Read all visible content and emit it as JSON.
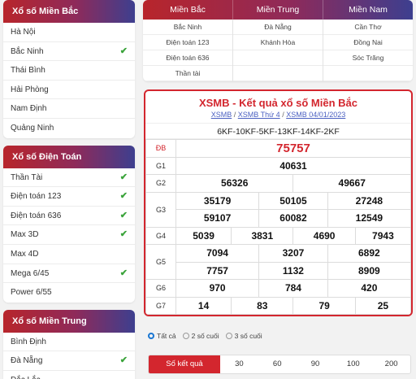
{
  "left": {
    "bac": {
      "title": "Xổ số Miền Bắc",
      "items": [
        {
          "label": "Hà Nội",
          "checked": false
        },
        {
          "label": "Bắc Ninh",
          "checked": true
        },
        {
          "label": "Thái Bình",
          "checked": false
        },
        {
          "label": "Hải Phòng",
          "checked": false
        },
        {
          "label": "Nam Định",
          "checked": false
        },
        {
          "label": "Quảng Ninh",
          "checked": false
        }
      ]
    },
    "dientoan": {
      "title": "Xổ số Điện Toán",
      "items": [
        {
          "label": "Thần Tài",
          "checked": true
        },
        {
          "label": "Điện toán 123",
          "checked": true
        },
        {
          "label": "Điện toán 636",
          "checked": true
        },
        {
          "label": "Max 3D",
          "checked": true
        },
        {
          "label": "Max 4D",
          "checked": false
        },
        {
          "label": "Mega 6/45",
          "checked": true
        },
        {
          "label": "Power 6/55",
          "checked": false
        }
      ]
    },
    "trung": {
      "title": "Xổ số Miền Trung",
      "items": [
        {
          "label": "Bình Định",
          "checked": false
        },
        {
          "label": "Đà Nẵng",
          "checked": true
        },
        {
          "label": "Đắc Lắc",
          "checked": false
        }
      ]
    }
  },
  "regions": {
    "headers": [
      "Miền Bắc",
      "Miền Trung",
      "Miền Nam"
    ],
    "columns": [
      [
        "Bắc Ninh",
        "Điện toán 123",
        "Điện toán 636",
        "Thần tài"
      ],
      [
        "Đà Nẵng",
        "Khánh Hòa",
        "",
        ""
      ],
      [
        "Cần Thơ",
        "Đồng Nai",
        "Sóc Trăng",
        ""
      ]
    ]
  },
  "result": {
    "title": "XSMB - Kết quả xổ số Miền Bắc",
    "crumb1": "XSMB",
    "crumb2": "XSMB Thứ 4",
    "crumb3": "XSMB 04/01/2023",
    "sep": "/",
    "codes": "6KF-10KF-5KF-13KF-14KF-2KF",
    "labels": [
      "ĐB",
      "G1",
      "G2",
      "G3",
      "G4",
      "G5",
      "G6",
      "G7"
    ],
    "db": "75757",
    "g1": "40631",
    "g2": [
      "56326",
      "49667"
    ],
    "g3": [
      "35179",
      "50105",
      "27248",
      "59107",
      "60082",
      "12549"
    ],
    "g4": [
      "5039",
      "3831",
      "4690",
      "7943"
    ],
    "g5": [
      "7094",
      "3207",
      "6892",
      "7757",
      "1132",
      "8909"
    ],
    "g6": [
      "970",
      "784",
      "420"
    ],
    "g7": [
      "14",
      "83",
      "79",
      "25"
    ]
  },
  "filter": {
    "radios": [
      "Tất cả",
      "2 số cuối",
      "3 số cuối"
    ],
    "selected": 0
  },
  "counts": {
    "label": "Số kết quả",
    "options": [
      "30",
      "60",
      "90",
      "100",
      "200"
    ]
  },
  "colors": {
    "accent": "#d3262e",
    "header_end": "#3d3f8f",
    "check": "#3aa33a",
    "link": "#4a5fc1"
  }
}
